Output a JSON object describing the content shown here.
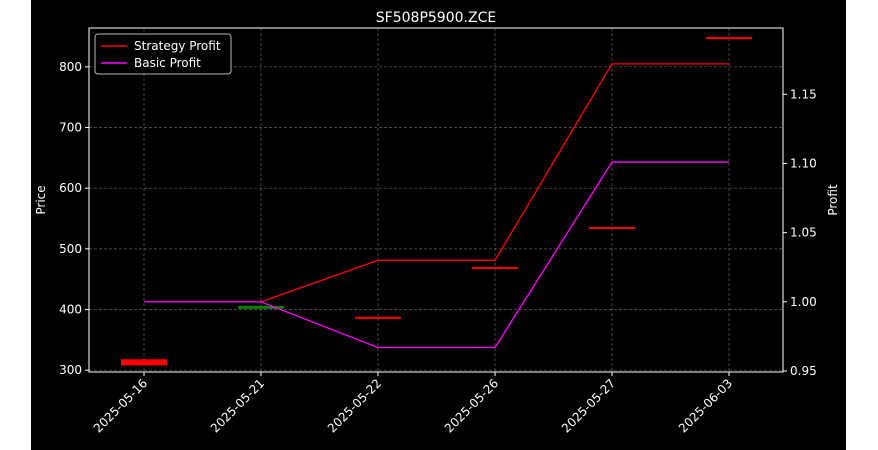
{
  "chart_data": {
    "type": "line",
    "title": "SF508P5900.ZCE",
    "xlabel": "",
    "ylabel": "Price",
    "y2label": "Profit",
    "categories": [
      "2025-05-16",
      "2025-05-21",
      "2025-05-22",
      "2025-05-26",
      "2025-05-27",
      "2025-06-03"
    ],
    "y_ticks": [
      300,
      400,
      500,
      600,
      700,
      800
    ],
    "y2_ticks": [
      0.95,
      1.0,
      1.05,
      1.1,
      1.15
    ],
    "ylim": [
      297,
      864
    ],
    "y2lim": [
      0.9493,
      1.1979
    ],
    "grid": true,
    "legend_position": "top-left",
    "candles": [
      {
        "date": "2025-05-16",
        "open": 318,
        "close": 308,
        "color": "#ff0000"
      },
      {
        "date": "2025-05-21",
        "open": 406,
        "close": 401,
        "color": "#008000"
      },
      {
        "date": "2025-05-22",
        "open": 388,
        "close": 387,
        "color": "#ff0000"
      },
      {
        "date": "2025-05-26",
        "open": 470,
        "close": 469,
        "color": "#ff0000"
      },
      {
        "date": "2025-05-27",
        "open": 536,
        "close": 535,
        "color": "#ff0000"
      },
      {
        "date": "2025-06-03",
        "open": 849,
        "close": 848,
        "color": "#ff0000"
      }
    ],
    "series": [
      {
        "name": "Strategy Profit",
        "axis": "right",
        "color": "#ff0000",
        "values": [
          1.0,
          1.0,
          1.03,
          1.03,
          1.172,
          1.172
        ]
      },
      {
        "name": "Basic Profit",
        "axis": "right",
        "color": "#ff00ff",
        "values": [
          1.0,
          1.0,
          0.967,
          0.967,
          1.101,
          1.101
        ]
      }
    ]
  }
}
